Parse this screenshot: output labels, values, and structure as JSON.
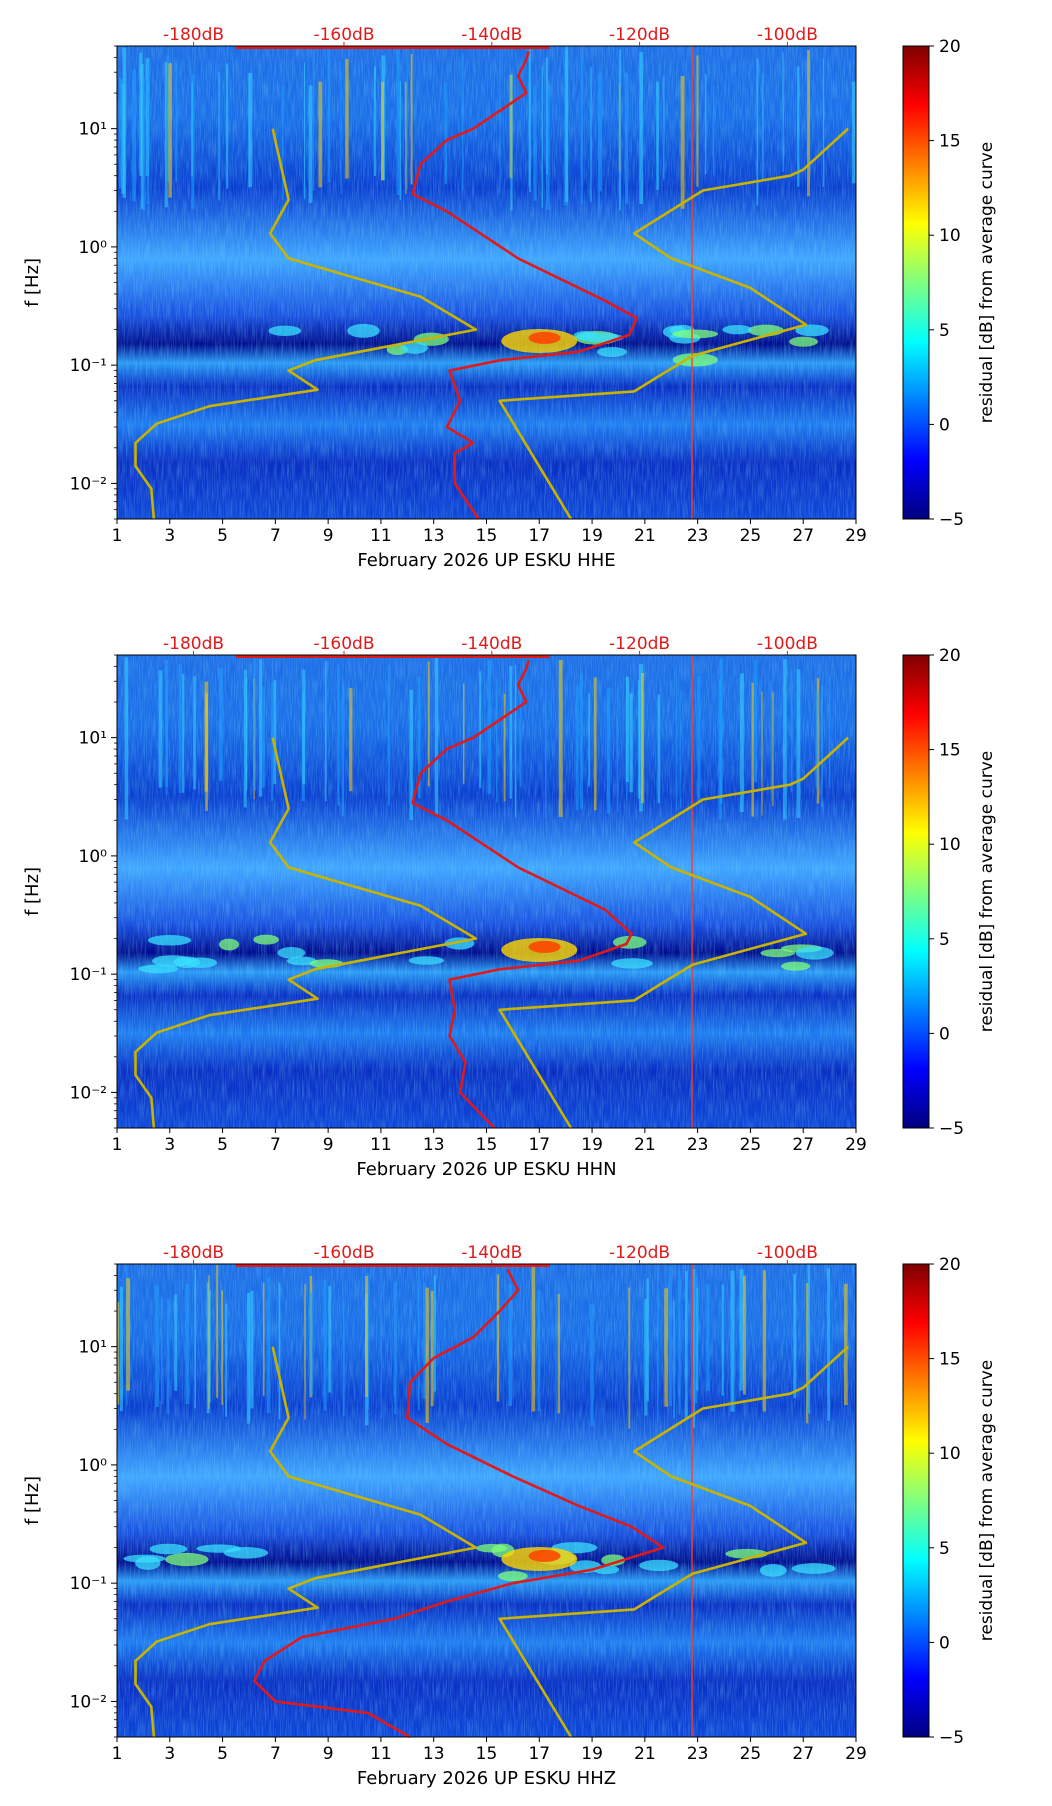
{
  "chart_data": [
    {
      "type": "heatmap",
      "xlabel": "February 2026 UP ESKU  HHE",
      "ylabel": "f [Hz]",
      "x_ticks": [
        "1",
        "3",
        "5",
        "7",
        "9",
        "11",
        "13",
        "15",
        "17",
        "19",
        "21",
        "23",
        "25",
        "27",
        "29"
      ],
      "y_ticks": [
        "10⁻²",
        "10⁻¹",
        "10⁰",
        "10¹"
      ],
      "top_ticks": [
        "-180dB",
        "-160dB",
        "-140dB",
        "-120dB",
        "-100dB"
      ],
      "colorbar": {
        "label": "residual [dB] from average curve",
        "min": -5,
        "max": 20,
        "ticks": [
          "−5",
          "0",
          "5",
          "10",
          "15",
          "20"
        ]
      },
      "xlim": [
        1,
        29
      ],
      "ylim": [
        0.005,
        50
      ],
      "series": [
        {
          "name": "percentile curve (yellow)",
          "color": "#c8b400",
          "points": [
            [
              2.4,
              0.005
            ],
            [
              2.3,
              0.009
            ],
            [
              1.7,
              0.014
            ],
            [
              1.7,
              0.022
            ],
            [
              2.5,
              0.032
            ],
            [
              4.5,
              0.045
            ],
            [
              8.6,
              0.062
            ],
            [
              7.5,
              0.09
            ],
            [
              8.5,
              0.11
            ],
            [
              14.6,
              0.2
            ],
            [
              12.5,
              0.38
            ],
            [
              10,
              0.55
            ],
            [
              7.5,
              0.8
            ],
            [
              6.8,
              1.3
            ],
            [
              7.5,
              2.5
            ],
            [
              6.9,
              10
            ]
          ]
        },
        {
          "name": "percentile curve (yellow, right)",
          "color": "#c8b400",
          "points": [
            [
              18.2,
              0.005
            ],
            [
              15.5,
              0.05
            ],
            [
              20.6,
              0.06
            ],
            [
              21.5,
              0.08
            ],
            [
              22.8,
              0.12
            ],
            [
              27.1,
              0.22
            ],
            [
              25,
              0.45
            ],
            [
              22,
              0.8
            ],
            [
              20.6,
              1.3
            ],
            [
              23.2,
              3
            ],
            [
              26.5,
              4
            ],
            [
              27,
              4.5
            ],
            [
              28.7,
              10
            ]
          ]
        },
        {
          "name": "median curve (red)",
          "color": "#e01a1a",
          "points": [
            [
              14.7,
              0.005
            ],
            [
              13.8,
              0.01
            ],
            [
              13.8,
              0.018
            ],
            [
              14.5,
              0.022
            ],
            [
              13.5,
              0.03
            ],
            [
              14,
              0.05
            ],
            [
              13.6,
              0.09
            ],
            [
              15.5,
              0.11
            ],
            [
              18.5,
              0.13
            ],
            [
              20.4,
              0.18
            ],
            [
              20.7,
              0.25
            ],
            [
              19.5,
              0.35
            ],
            [
              16.2,
              0.8
            ],
            [
              13.5,
              2
            ],
            [
              12.2,
              2.8
            ],
            [
              12.5,
              5
            ],
            [
              13.5,
              8
            ],
            [
              14.5,
              10
            ],
            [
              16.5,
              20
            ],
            [
              16.2,
              28
            ],
            [
              16.5,
              38
            ],
            [
              16.6,
              45
            ]
          ]
        }
      ]
    },
    {
      "type": "heatmap",
      "xlabel": "February 2026 UP ESKU  HHN",
      "ylabel": "f [Hz]",
      "x_ticks": [
        "1",
        "3",
        "5",
        "7",
        "9",
        "11",
        "13",
        "15",
        "17",
        "19",
        "21",
        "23",
        "25",
        "27",
        "29"
      ],
      "y_ticks": [
        "10⁻²",
        "10⁻¹",
        "10⁰",
        "10¹"
      ],
      "top_ticks": [
        "-180dB",
        "-160dB",
        "-140dB",
        "-120dB",
        "-100dB"
      ],
      "colorbar": {
        "label": "residual [dB] from average curve",
        "min": -5,
        "max": 20,
        "ticks": [
          "−5",
          "0",
          "5",
          "10",
          "15",
          "20"
        ]
      },
      "xlim": [
        1,
        29
      ],
      "ylim": [
        0.005,
        50
      ],
      "series": [
        {
          "name": "percentile curve (yellow)",
          "color": "#c8b400",
          "points": [
            [
              2.4,
              0.005
            ],
            [
              2.3,
              0.009
            ],
            [
              1.7,
              0.014
            ],
            [
              1.7,
              0.022
            ],
            [
              2.5,
              0.032
            ],
            [
              4.5,
              0.045
            ],
            [
              8.6,
              0.062
            ],
            [
              7.5,
              0.09
            ],
            [
              8.5,
              0.11
            ],
            [
              14.6,
              0.2
            ],
            [
              12.5,
              0.38
            ],
            [
              10,
              0.55
            ],
            [
              7.5,
              0.8
            ],
            [
              6.8,
              1.3
            ],
            [
              7.5,
              2.5
            ],
            [
              6.9,
              10
            ]
          ]
        },
        {
          "name": "percentile curve (yellow, right)",
          "color": "#c8b400",
          "points": [
            [
              18.2,
              0.005
            ],
            [
              15.5,
              0.05
            ],
            [
              20.6,
              0.06
            ],
            [
              21.5,
              0.08
            ],
            [
              22.8,
              0.12
            ],
            [
              27.1,
              0.22
            ],
            [
              25,
              0.45
            ],
            [
              22,
              0.8
            ],
            [
              20.6,
              1.3
            ],
            [
              23.2,
              3
            ],
            [
              26.5,
              4
            ],
            [
              27,
              4.5
            ],
            [
              28.7,
              10
            ]
          ]
        },
        {
          "name": "median curve (red)",
          "color": "#e01a1a",
          "points": [
            [
              15.3,
              0.005
            ],
            [
              14,
              0.01
            ],
            [
              14.2,
              0.018
            ],
            [
              13.6,
              0.03
            ],
            [
              13.8,
              0.05
            ],
            [
              13.6,
              0.09
            ],
            [
              15.5,
              0.11
            ],
            [
              18.5,
              0.13
            ],
            [
              20.3,
              0.18
            ],
            [
              20.5,
              0.22
            ],
            [
              19.5,
              0.35
            ],
            [
              16.2,
              0.8
            ],
            [
              13.5,
              2
            ],
            [
              12.2,
              2.8
            ],
            [
              12.5,
              5
            ],
            [
              13.5,
              8
            ],
            [
              14.5,
              10
            ],
            [
              16.5,
              20
            ],
            [
              16.2,
              28
            ],
            [
              16.5,
              38
            ],
            [
              16.6,
              45
            ]
          ]
        }
      ]
    },
    {
      "type": "heatmap",
      "xlabel": "February 2026 UP ESKU  HHZ",
      "ylabel": "f [Hz]",
      "x_ticks": [
        "1",
        "3",
        "5",
        "7",
        "9",
        "11",
        "13",
        "15",
        "17",
        "19",
        "21",
        "23",
        "25",
        "27",
        "29"
      ],
      "y_ticks": [
        "10⁻²",
        "10⁻¹",
        "10⁰",
        "10¹"
      ],
      "top_ticks": [
        "-180dB",
        "-160dB",
        "-140dB",
        "-120dB",
        "-100dB"
      ],
      "colorbar": {
        "label": "residual [dB] from average curve",
        "min": -5,
        "max": 20,
        "ticks": [
          "−5",
          "0",
          "5",
          "10",
          "15",
          "20"
        ]
      },
      "xlim": [
        1,
        29
      ],
      "ylim": [
        0.005,
        50
      ],
      "series": [
        {
          "name": "percentile curve (yellow)",
          "color": "#c8b400",
          "points": [
            [
              2.4,
              0.005
            ],
            [
              2.3,
              0.009
            ],
            [
              1.7,
              0.014
            ],
            [
              1.7,
              0.022
            ],
            [
              2.5,
              0.032
            ],
            [
              4.5,
              0.045
            ],
            [
              8.6,
              0.062
            ],
            [
              7.5,
              0.09
            ],
            [
              8.5,
              0.11
            ],
            [
              14.6,
              0.2
            ],
            [
              12.5,
              0.38
            ],
            [
              10,
              0.55
            ],
            [
              7.5,
              0.8
            ],
            [
              6.8,
              1.3
            ],
            [
              7.5,
              2.5
            ],
            [
              6.9,
              10
            ]
          ]
        },
        {
          "name": "percentile curve (yellow, right)",
          "color": "#c8b400",
          "points": [
            [
              18.2,
              0.005
            ],
            [
              15.5,
              0.05
            ],
            [
              20.6,
              0.06
            ],
            [
              21.5,
              0.08
            ],
            [
              22.8,
              0.12
            ],
            [
              27.1,
              0.22
            ],
            [
              25,
              0.45
            ],
            [
              22,
              0.8
            ],
            [
              20.6,
              1.3
            ],
            [
              23.2,
              3
            ],
            [
              26.5,
              4
            ],
            [
              27,
              4.5
            ],
            [
              28.7,
              10
            ]
          ]
        },
        {
          "name": "median curve (red)",
          "color": "#e01a1a",
          "points": [
            [
              12.1,
              0.005
            ],
            [
              10.5,
              0.008
            ],
            [
              7,
              0.01
            ],
            [
              6.2,
              0.015
            ],
            [
              6.6,
              0.022
            ],
            [
              8,
              0.035
            ],
            [
              11.5,
              0.05
            ],
            [
              13.5,
              0.07
            ],
            [
              16,
              0.1
            ],
            [
              19,
              0.13
            ],
            [
              21.7,
              0.2
            ],
            [
              20.5,
              0.3
            ],
            [
              18.5,
              0.45
            ],
            [
              16,
              0.8
            ],
            [
              13.5,
              1.5
            ],
            [
              12,
              2.5
            ],
            [
              12.1,
              5
            ],
            [
              13,
              8
            ],
            [
              14.5,
              12
            ],
            [
              15.5,
              20
            ],
            [
              16.2,
              30
            ],
            [
              15.8,
              45
            ]
          ]
        }
      ]
    }
  ]
}
